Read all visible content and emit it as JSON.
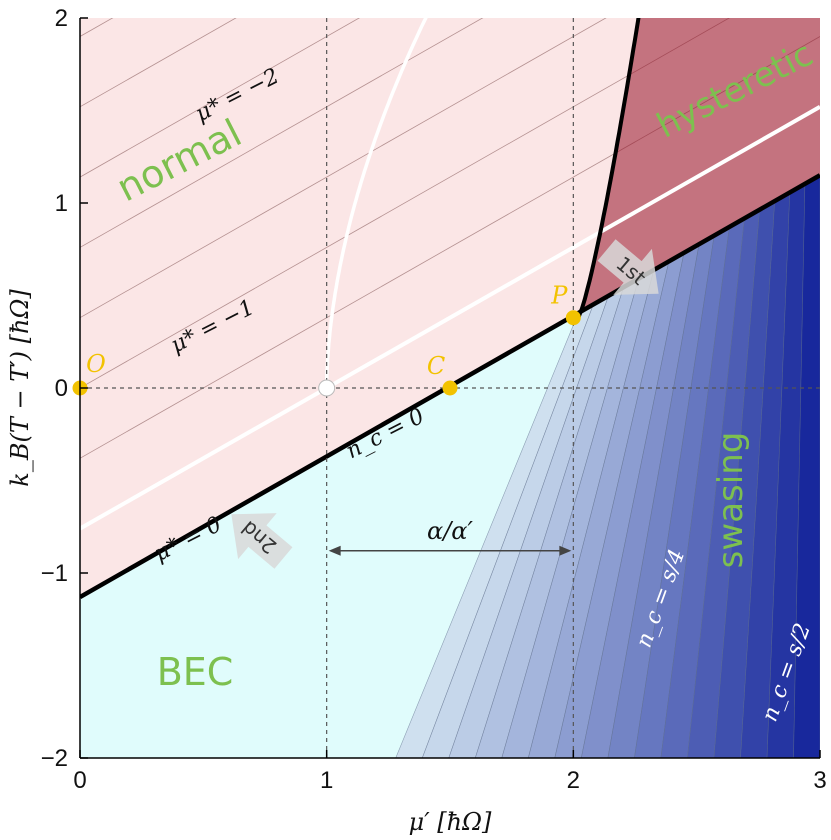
{
  "chart_data": {
    "type": "area",
    "title": "",
    "xlabel": "μ′ [ħΩ]",
    "ylabel": "k_B(T − T′) [ħΩ]",
    "xlim": [
      0,
      3
    ],
    "ylim": [
      -2,
      2
    ],
    "xticks": [
      "0",
      "1",
      "2",
      "3"
    ],
    "yticks": [
      "−2",
      "−1",
      "0",
      "1",
      "2"
    ],
    "grid_lines_x": [
      1,
      2
    ],
    "grid_lines_y": [
      0
    ],
    "colors": {
      "normal_light": "#fbe6e6",
      "normal_dark": "#ad1e2f",
      "bec": "#e0fcfc",
      "swasing_light": "#cfe0ef",
      "swasing_dark": "#0a1a96",
      "region_label": "#7dc04f",
      "points": "#f2c200"
    },
    "boundaries": {
      "mu_star_zero": {
        "label": "μ* = 0",
        "slope": 0.76,
        "intercept": -1.13
      },
      "second_white": {
        "slope": 0.76,
        "intercept": -0.76
      },
      "nc_zero_label": "n_c = 0"
    },
    "red_isolines": [
      {
        "intercept": -0.38
      },
      {
        "intercept": 0.0
      },
      {
        "intercept": 0.38
      },
      {
        "intercept": 0.76
      },
      {
        "intercept": 1.14
      },
      {
        "intercept": 1.52
      },
      {
        "intercept": 1.9
      },
      {
        "intercept": 2.28
      }
    ],
    "isoline_labels": [
      {
        "text": "μ* = −2",
        "x": 0.65,
        "y": 1.55
      },
      {
        "text": "μ* = −1",
        "x": 0.55,
        "y": 0.3
      },
      {
        "text": "μ* = 0",
        "x": 0.45,
        "y": -0.85
      },
      {
        "text": "n_c = 0",
        "x": 1.25,
        "y": -0.28
      }
    ],
    "fan_fraction_labels": [
      {
        "text": "n_c = s/4",
        "x": 2.38,
        "y": -1.15
      },
      {
        "text": "n_c = s/2",
        "x": 2.89,
        "y": -1.55
      }
    ],
    "points": [
      {
        "name": "O",
        "x": 0.0,
        "y": 0.0
      },
      {
        "name": "C",
        "x": 1.5,
        "y": 0.0
      },
      {
        "name": "P",
        "x": 2.0,
        "y": 0.38
      }
    ],
    "open_point": {
      "x": 1.0,
      "y": 0.0
    },
    "regions": [
      {
        "label": "normal"
      },
      {
        "label": "hysteretic"
      },
      {
        "label": "swasing"
      },
      {
        "label": "BEC"
      }
    ],
    "arrows": [
      {
        "label": "1st"
      },
      {
        "label": "2nd"
      }
    ],
    "span_annotation": {
      "label": "α/α′",
      "x_from": 1,
      "x_to": 2,
      "y": -0.88
    }
  }
}
